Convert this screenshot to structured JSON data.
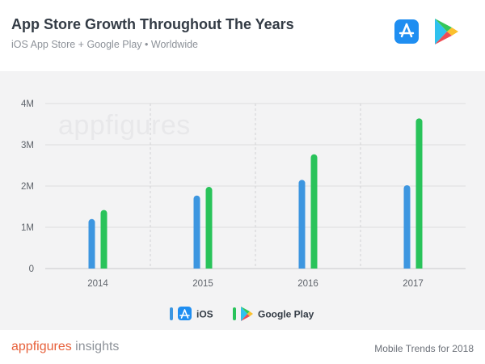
{
  "header": {
    "title": "App Store Growth Throughout The Years",
    "subtitle": "iOS App Store + Google Play • Worldwide",
    "icons": [
      "app-store-icon",
      "google-play-icon"
    ]
  },
  "watermark": "appfigures",
  "footer": {
    "brand_name": "appfigures",
    "brand_suffix": " insights",
    "note": "Mobile Trends for 2018"
  },
  "colors": {
    "ios": "#3d96e0",
    "google_play": "#29c35a",
    "brand": "#e7603a"
  },
  "chart_data": {
    "type": "bar",
    "title": "App Store Growth Throughout The Years",
    "subtitle": "iOS App Store + Google Play • Worldwide",
    "categories": [
      "2014",
      "2015",
      "2016",
      "2017"
    ],
    "series": [
      {
        "name": "iOS",
        "values": [
          1.2,
          1.77,
          2.15,
          2.02
        ]
      },
      {
        "name": "Google Play",
        "values": [
          1.42,
          1.98,
          2.77,
          3.64
        ]
      }
    ],
    "unit": "M",
    "ylim": [
      0,
      4
    ],
    "yticks": [
      "0",
      "1M",
      "2M",
      "3M",
      "4M"
    ],
    "grid": true,
    "legend_position": "bottom"
  }
}
